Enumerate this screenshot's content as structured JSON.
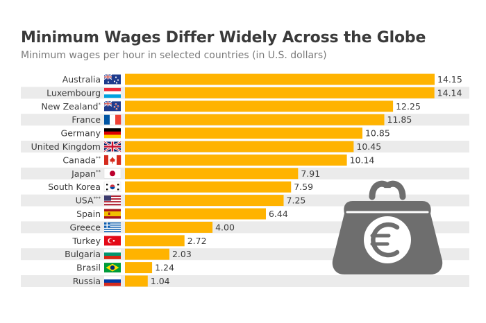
{
  "chart_data": {
    "type": "bar",
    "orientation": "horizontal",
    "title": "Minimum Wages Differ Widely Across the Globe",
    "subtitle": "Minimum wages per hour in selected countries (in U.S. dollars)",
    "xlim": [
      0,
      14.15
    ],
    "grid": false,
    "legend": "none",
    "categories": [
      {
        "name": "Australia",
        "mark": "",
        "flag": "australia-flag-icon"
      },
      {
        "name": "Luxembourg",
        "mark": "",
        "flag": "luxembourg-flag-icon"
      },
      {
        "name": "New Zealand",
        "mark": "*",
        "flag": "new-zealand-flag-icon"
      },
      {
        "name": "France",
        "mark": "",
        "flag": "france-flag-icon"
      },
      {
        "name": "Germany",
        "mark": "",
        "flag": "germany-flag-icon"
      },
      {
        "name": "United Kingdom",
        "mark": "",
        "flag": "uk-flag-icon"
      },
      {
        "name": "Canada",
        "mark": "**",
        "flag": "canada-flag-icon"
      },
      {
        "name": "Japan",
        "mark": "**",
        "flag": "japan-flag-icon"
      },
      {
        "name": "South Korea",
        "mark": "",
        "flag": "south-korea-flag-icon"
      },
      {
        "name": "USA",
        "mark": "***",
        "flag": "usa-flag-icon"
      },
      {
        "name": "Spain",
        "mark": "",
        "flag": "spain-flag-icon"
      },
      {
        "name": "Greece",
        "mark": "",
        "flag": "greece-flag-icon"
      },
      {
        "name": "Turkey",
        "mark": "",
        "flag": "turkey-flag-icon"
      },
      {
        "name": "Bulgaria",
        "mark": "",
        "flag": "bulgaria-flag-icon"
      },
      {
        "name": "Brasil",
        "mark": "",
        "flag": "brazil-flag-icon"
      },
      {
        "name": "Russia",
        "mark": "",
        "flag": "russia-flag-icon"
      }
    ],
    "values": [
      14.15,
      14.14,
      12.25,
      11.85,
      10.85,
      10.45,
      10.14,
      7.91,
      7.59,
      7.25,
      6.44,
      4.0,
      2.72,
      2.03,
      1.24,
      1.04
    ],
    "value_labels": [
      "14.15",
      "14.14",
      "12.25",
      "11.85",
      "10.85",
      "10.45",
      "10.14",
      "7.91",
      "7.59",
      "7.25",
      "6.44",
      "4.00",
      "2.72",
      "2.03",
      "1.24",
      "1.04"
    ],
    "colors": {
      "bar": "#ffb300",
      "row_band": "#ebebeb",
      "purse": "#6e6e6e",
      "text": "#3a3a3a",
      "subtitle": "#7a7a7a"
    },
    "illustration": "euro-purse-icon"
  }
}
